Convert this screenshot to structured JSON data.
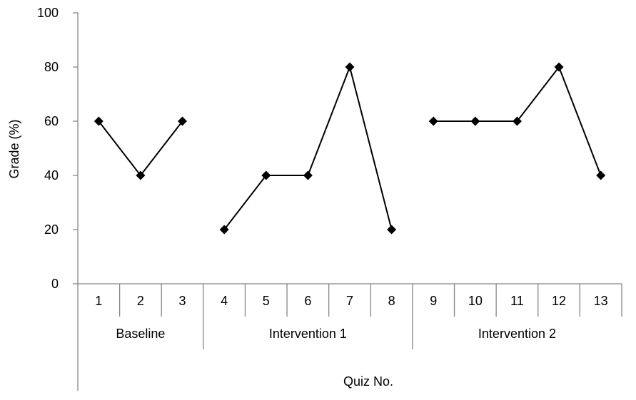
{
  "chart_data": {
    "type": "line",
    "title": "",
    "ylabel": "Grade (%)",
    "xlabel": "Quiz No.",
    "ylim": [
      0,
      100
    ],
    "yticks": [
      0,
      20,
      40,
      60,
      80,
      100
    ],
    "grid": false,
    "legend": "none",
    "marker": "diamond",
    "line_color": "#000000",
    "categories": [
      "1",
      "2",
      "3",
      "4",
      "5",
      "6",
      "7",
      "8",
      "9",
      "10",
      "11",
      "12",
      "13"
    ],
    "phases": [
      {
        "label": "Baseline",
        "quizzes": [
          "1",
          "2",
          "3"
        ],
        "values": [
          60,
          40,
          60
        ]
      },
      {
        "label": "Intervention 1",
        "quizzes": [
          "4",
          "5",
          "6",
          "7",
          "8"
        ],
        "values": [
          20,
          40,
          40,
          80,
          20
        ]
      },
      {
        "label": "Intervention 2",
        "quizzes": [
          "9",
          "10",
          "11",
          "12",
          "13"
        ],
        "values": [
          60,
          60,
          60,
          80,
          40
        ]
      }
    ]
  }
}
